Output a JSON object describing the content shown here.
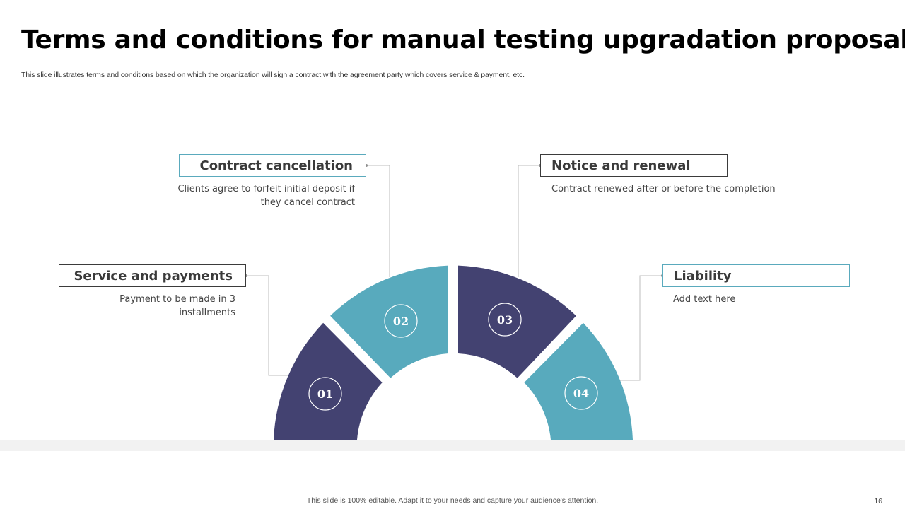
{
  "title": "Terms and conditions for manual testing upgradation proposal",
  "subtitle": "This slide illustrates terms and conditions based on which the organization will sign a contract with the agreement party which covers service & payment, etc.",
  "colors": {
    "navy": "#434271",
    "teal": "#58aabd",
    "box_border": "#3b3b3b",
    "connector": "#bdbdbd"
  },
  "segments": [
    {
      "number": "01",
      "heading": "Service and payments",
      "text": "Payment to be made in 3 installments",
      "color": "navy"
    },
    {
      "number": "02",
      "heading": "Contract cancellation",
      "text": "Clients agree to forfeit initial deposit if they cancel contract",
      "color": "teal"
    },
    {
      "number": "03",
      "heading": "Notice and renewal",
      "text": "Contract renewed after or before the completion",
      "color": "navy"
    },
    {
      "number": "04",
      "heading": "Liability",
      "text": "Add text here",
      "color": "teal"
    }
  ],
  "footer": "This slide is 100% editable. Adapt it to your needs and capture your audience's attention.",
  "page_number": "16"
}
